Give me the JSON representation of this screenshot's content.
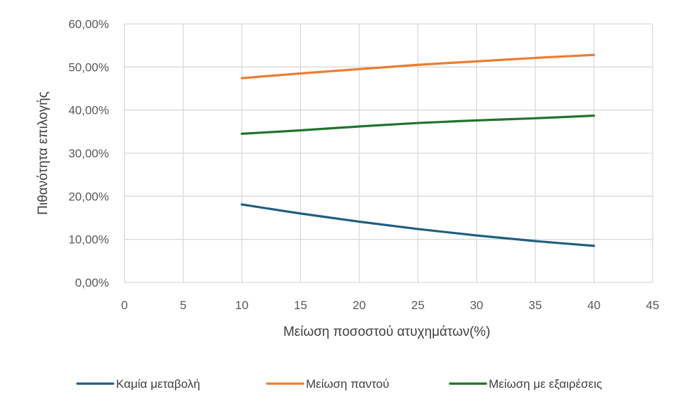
{
  "chart_data": {
    "type": "line",
    "title": "",
    "xlabel": "Μείωση ποσοστού ατυχημάτων(%)",
    "ylabel": "Πιθανότητα επιλογής",
    "xlim": [
      0,
      45
    ],
    "ylim": [
      0,
      60
    ],
    "x_ticks": [
      "0",
      "5",
      "10",
      "15",
      "20",
      "25",
      "30",
      "35",
      "40",
      "45"
    ],
    "y_ticks": [
      "0,00%",
      "10,00%",
      "20,00%",
      "30,00%",
      "40,00%",
      "50,00%",
      "60,00%"
    ],
    "grid": true,
    "legend_position": "bottom",
    "x": [
      10,
      15,
      20,
      25,
      30,
      35,
      40
    ],
    "series": [
      {
        "name": "Καμία μεταβολή",
        "color": "#215f80",
        "values": [
          18.1,
          16.0,
          14.1,
          12.4,
          10.9,
          9.6,
          8.5
        ]
      },
      {
        "name": "Μείωση παντού",
        "color": "#ec7d32",
        "values": [
          47.4,
          48.5,
          49.5,
          50.5,
          51.3,
          52.1,
          52.8
        ]
      },
      {
        "name": "Μείωση με εξαιρέσεις",
        "color": "#22742b",
        "values": [
          34.5,
          35.3,
          36.2,
          37.0,
          37.6,
          38.1,
          38.7
        ]
      }
    ]
  }
}
